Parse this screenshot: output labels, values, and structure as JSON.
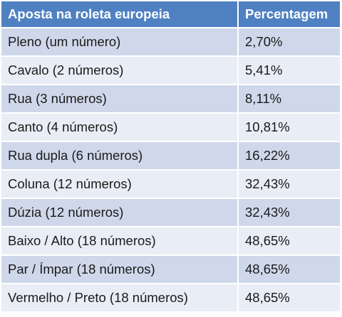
{
  "table": {
    "headers": [
      "Aposta na roleta europeia",
      "Percentagem"
    ],
    "rows": [
      [
        "Pleno (um número)",
        "2,70%"
      ],
      [
        "Cavalo (2 números)",
        "5,41%"
      ],
      [
        "Rua (3 números)",
        "8,11%"
      ],
      [
        "Canto (4 números)",
        "10,81%"
      ],
      [
        "Rua dupla (6 números)",
        "16,22%"
      ],
      [
        "Coluna (12 números)",
        "32,43%"
      ],
      [
        "Dúzia (12 números)",
        "32,43%"
      ],
      [
        "Baixo / Alto (18 números)",
        "48,65%"
      ],
      [
        "Par / Ímpar (18 números)",
        "48,65%"
      ],
      [
        "Vermelho / Preto (18 números)",
        "48,65%"
      ]
    ]
  },
  "colors": {
    "header_bg": "#4f81c2",
    "row_dark": "#cfd8ea",
    "row_light": "#e9edf5"
  }
}
